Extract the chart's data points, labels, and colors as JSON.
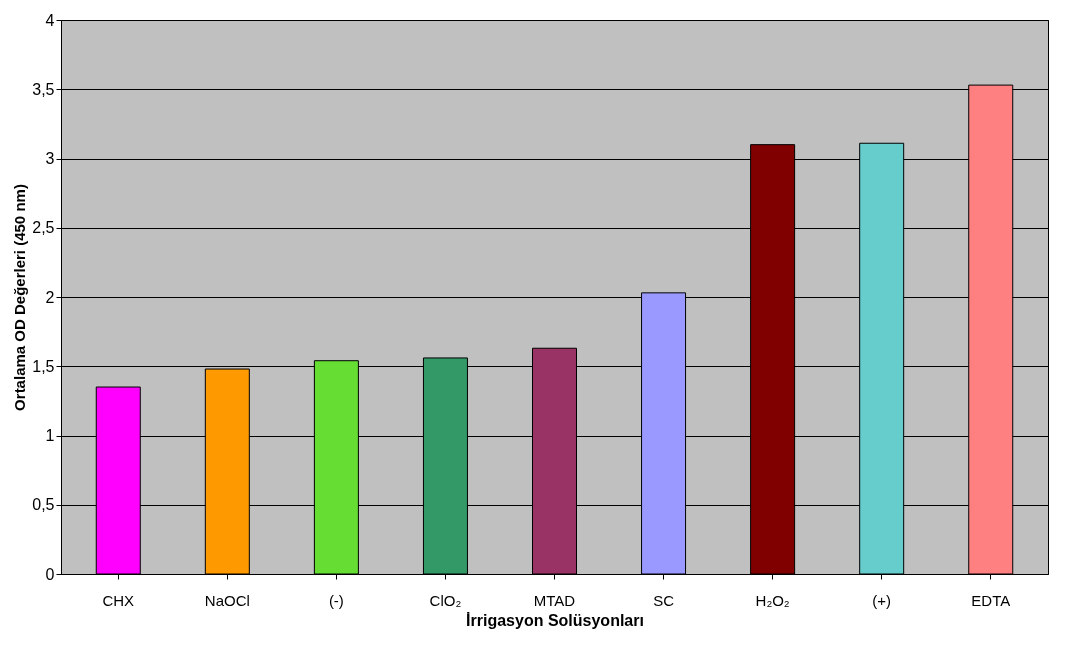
{
  "chart_data": {
    "type": "bar",
    "xlabel": "İrrigasyon Solüsyonları",
    "ylabel": "Ortalama OD Değerleri (450 nm)",
    "categories": [
      "CHX",
      "NaOCl",
      "(-)",
      "ClO₂",
      "MTAD",
      "SC",
      "H₂O₂",
      "(+)",
      "EDTA"
    ],
    "values": [
      1.35,
      1.48,
      1.54,
      1.56,
      1.63,
      2.03,
      3.1,
      3.11,
      3.53
    ],
    "colors": [
      "#ff00ff",
      "#ff9900",
      "#66dd33",
      "#339966",
      "#993366",
      "#9999ff",
      "#800000",
      "#66cccc",
      "#ff8080"
    ],
    "ylim": [
      0,
      4
    ],
    "yticks": [
      0,
      {
        "value": 0.5,
        "label": "0,5"
      },
      1,
      {
        "value": 1.5,
        "label": "1,5"
      },
      2,
      {
        "value": 2.5,
        "label": "2,5"
      },
      3,
      {
        "value": 3.5,
        "label": "3,5"
      },
      4
    ],
    "grid": "y"
  }
}
